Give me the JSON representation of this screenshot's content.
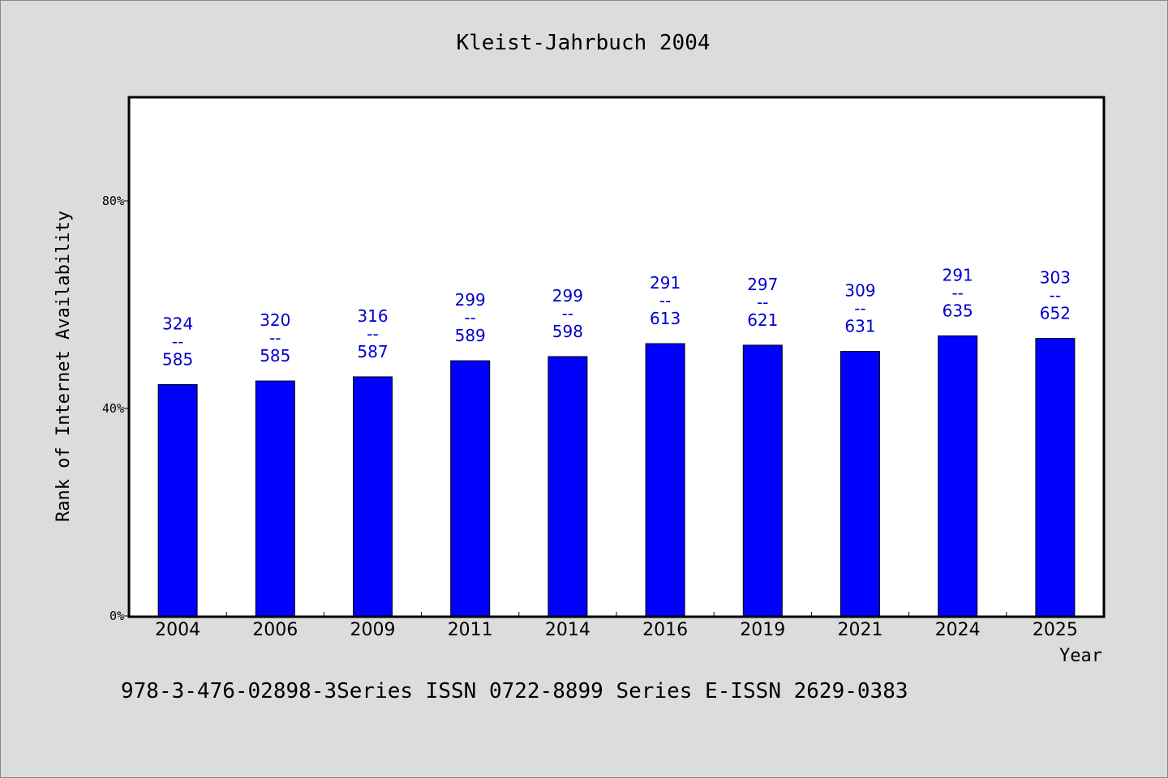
{
  "chart_data": {
    "type": "bar",
    "title": "Kleist-Jahrbuch 2004",
    "xlabel": "Year",
    "ylabel": "Rank of Internet Availability",
    "ylim": [
      0,
      100
    ],
    "yticks": [
      {
        "value": 0,
        "label": "0%"
      },
      {
        "value": 40,
        "label": "40%"
      },
      {
        "value": 80,
        "label": "80%"
      }
    ],
    "grid": false,
    "bar_color": "#0000ff",
    "label_color": "#0000cc",
    "categories": [
      "2004",
      "2006",
      "2009",
      "2011",
      "2014",
      "2016",
      "2019",
      "2021",
      "2024",
      "2025"
    ],
    "values": [
      44.6,
      45.3,
      46.1,
      49.2,
      50.0,
      52.5,
      52.2,
      51.0,
      54.0,
      53.5
    ],
    "annotations": [
      {
        "top": "324",
        "sep": "--",
        "bottom": "585"
      },
      {
        "top": "320",
        "sep": "--",
        "bottom": "585"
      },
      {
        "top": "316",
        "sep": "--",
        "bottom": "587"
      },
      {
        "top": "299",
        "sep": "--",
        "bottom": "589"
      },
      {
        "top": "299",
        "sep": "--",
        "bottom": "598"
      },
      {
        "top": "291",
        "sep": "--",
        "bottom": "613"
      },
      {
        "top": "297",
        "sep": "--",
        "bottom": "621"
      },
      {
        "top": "309",
        "sep": "--",
        "bottom": "631"
      },
      {
        "top": "291",
        "sep": "--",
        "bottom": "635"
      },
      {
        "top": "303",
        "sep": "--",
        "bottom": "652"
      }
    ]
  },
  "footer": "978-3-476-02898-3Series ISSN 0722-8899 Series E-ISSN 2629-0383"
}
